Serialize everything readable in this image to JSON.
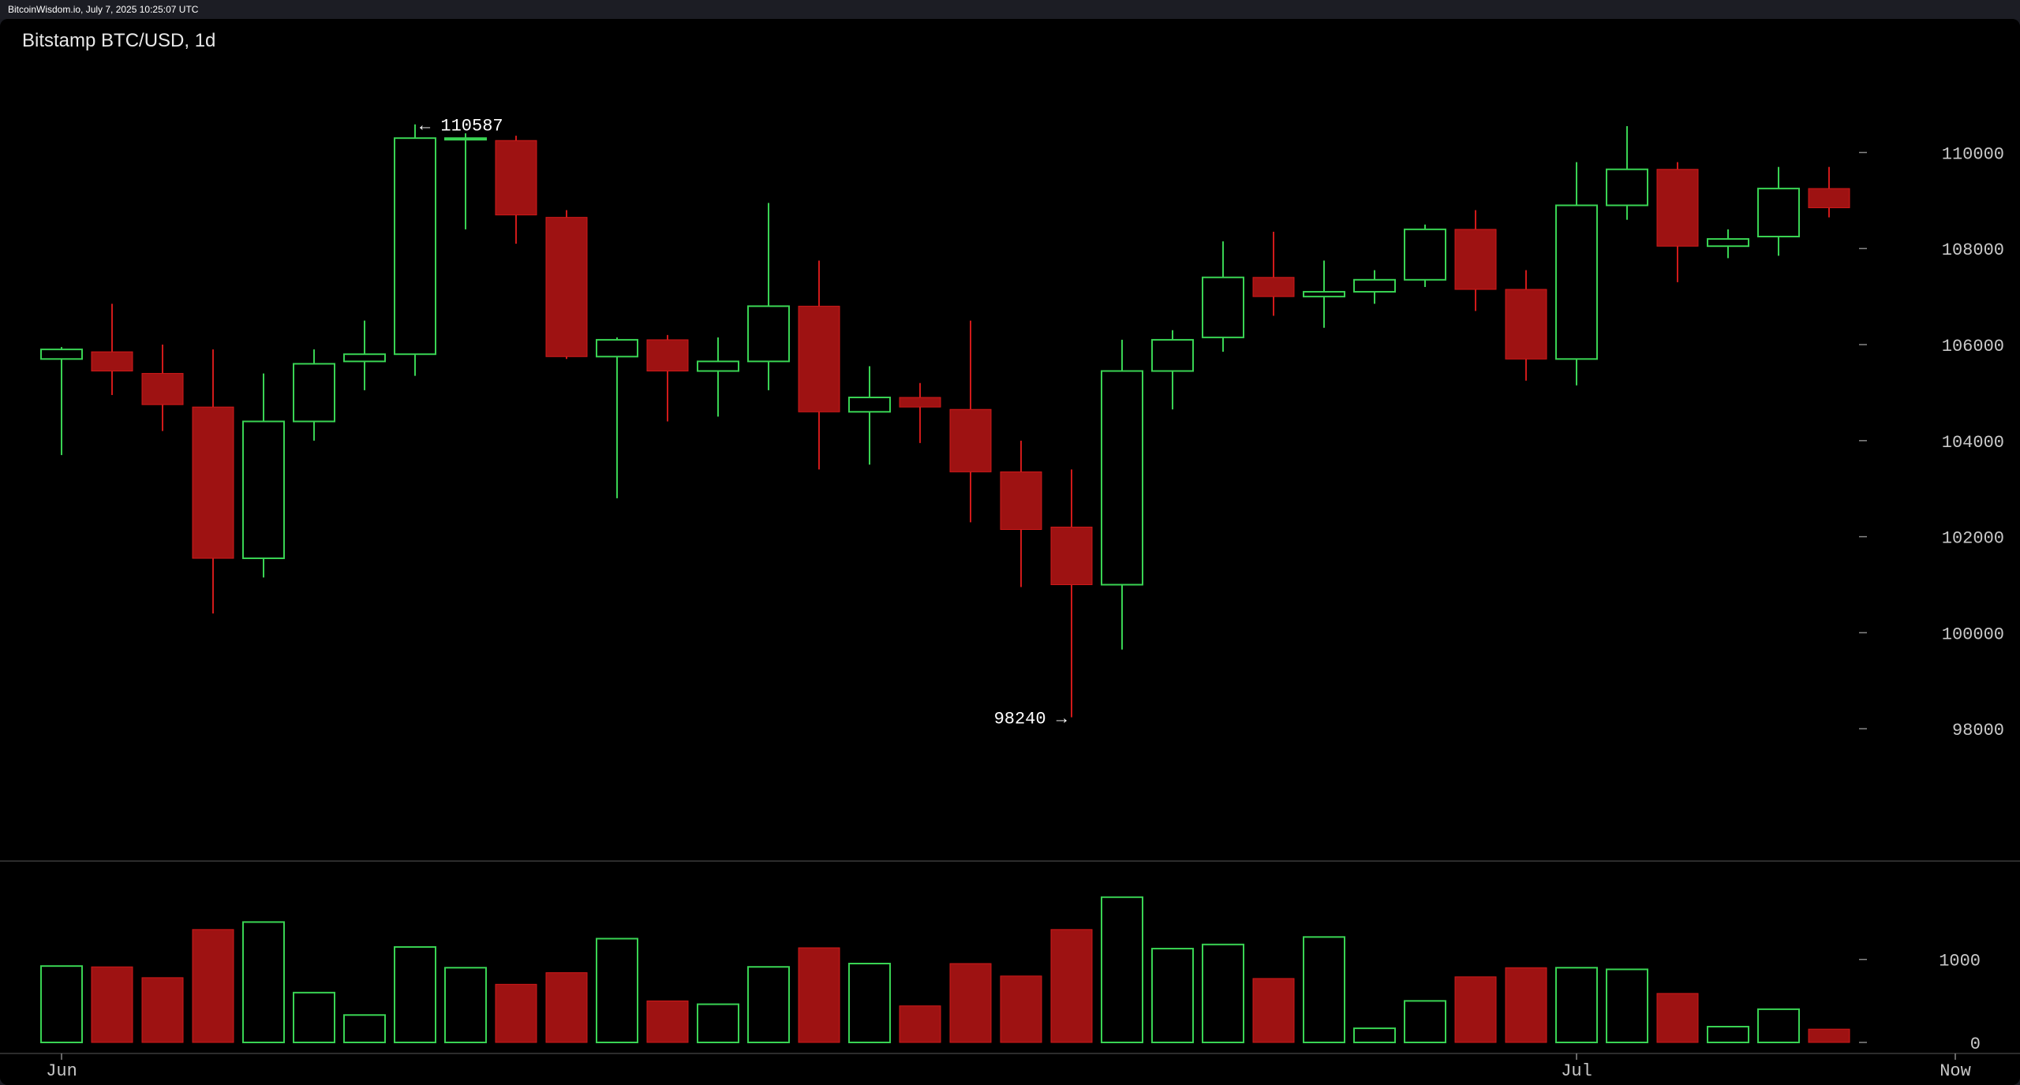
{
  "header": {
    "source_line": "BitcoinWisdom.io, July 7, 2025 10:25:07 UTC"
  },
  "colors": {
    "background": "#000000",
    "up": "#39d353",
    "down": "#9e1212",
    "down_wick": "#d11a1a",
    "grid_text": "#c8c8c8",
    "separator": "#3a3a3a"
  },
  "chart_data": {
    "type": "candlestick",
    "title": "Bitstamp BTC/USD, 1d",
    "price_axis": {
      "ticks": [
        98000,
        100000,
        102000,
        104000,
        106000,
        108000,
        110000
      ],
      "tick_labels": [
        "98000",
        "100000",
        "102000",
        "104000",
        "106000",
        "108000",
        "110000"
      ],
      "ylim": [
        96000,
        111600
      ]
    },
    "volume_axis": {
      "ticks": [
        0,
        1000
      ],
      "tick_labels": [
        "0",
        "1000"
      ],
      "ylim": [
        0,
        1900
      ]
    },
    "x_axis": {
      "labels": [
        {
          "label": "Jun",
          "index": 0
        },
        {
          "label": "Jul",
          "index": 30
        },
        {
          "label": "Now",
          "index": 37.5
        }
      ]
    },
    "annotations": {
      "high": {
        "value": 110587,
        "label": "← 110587",
        "index": 7
      },
      "low": {
        "value": 98240,
        "label": "98240 →",
        "index": 20
      }
    },
    "candles": [
      {
        "o": 105700,
        "h": 105950,
        "l": 103700,
        "c": 105900,
        "v": 920
      },
      {
        "o": 105850,
        "h": 106850,
        "l": 104950,
        "c": 105450,
        "v": 910
      },
      {
        "o": 105400,
        "h": 106000,
        "l": 104200,
        "c": 104750,
        "v": 780
      },
      {
        "o": 104700,
        "h": 105900,
        "l": 100400,
        "c": 101550,
        "v": 1360
      },
      {
        "o": 101550,
        "h": 105400,
        "l": 101150,
        "c": 104400,
        "v": 1450
      },
      {
        "o": 104400,
        "h": 105900,
        "l": 104000,
        "c": 105600,
        "v": 600
      },
      {
        "o": 105650,
        "h": 106500,
        "l": 105050,
        "c": 105800,
        "v": 330
      },
      {
        "o": 105800,
        "h": 110587,
        "l": 105350,
        "c": 110300,
        "v": 1150
      },
      {
        "o": 110300,
        "h": 110400,
        "l": 108400,
        "c": 110300,
        "v": 900
      },
      {
        "o": 110250,
        "h": 110350,
        "l": 108100,
        "c": 108700,
        "v": 700
      },
      {
        "o": 108650,
        "h": 108800,
        "l": 105700,
        "c": 105750,
        "v": 840
      },
      {
        "o": 105750,
        "h": 106150,
        "l": 102800,
        "c": 106100,
        "v": 1250
      },
      {
        "o": 106100,
        "h": 106200,
        "l": 104400,
        "c": 105450,
        "v": 500
      },
      {
        "o": 105450,
        "h": 106150,
        "l": 104500,
        "c": 105650,
        "v": 460
      },
      {
        "o": 105650,
        "h": 108950,
        "l": 105050,
        "c": 106800,
        "v": 910
      },
      {
        "o": 106800,
        "h": 107750,
        "l": 103400,
        "c": 104600,
        "v": 1140
      },
      {
        "o": 104600,
        "h": 105550,
        "l": 103500,
        "c": 104900,
        "v": 950
      },
      {
        "o": 104900,
        "h": 105200,
        "l": 103950,
        "c": 104700,
        "v": 440
      },
      {
        "o": 104650,
        "h": 106500,
        "l": 102300,
        "c": 103350,
        "v": 950
      },
      {
        "o": 103350,
        "h": 104000,
        "l": 100950,
        "c": 102150,
        "v": 800
      },
      {
        "o": 102200,
        "h": 103400,
        "l": 98240,
        "c": 101000,
        "v": 1360
      },
      {
        "o": 101000,
        "h": 106100,
        "l": 99650,
        "c": 105450,
        "v": 1750
      },
      {
        "o": 105450,
        "h": 106300,
        "l": 104650,
        "c": 106100,
        "v": 1130
      },
      {
        "o": 106150,
        "h": 108150,
        "l": 105850,
        "c": 107400,
        "v": 1180
      },
      {
        "o": 107400,
        "h": 108350,
        "l": 106600,
        "c": 107000,
        "v": 770
      },
      {
        "o": 107000,
        "h": 107750,
        "l": 106350,
        "c": 107100,
        "v": 1270
      },
      {
        "o": 107100,
        "h": 107550,
        "l": 106850,
        "c": 107350,
        "v": 170
      },
      {
        "o": 107350,
        "h": 108500,
        "l": 107200,
        "c": 108400,
        "v": 500
      },
      {
        "o": 108400,
        "h": 108800,
        "l": 106700,
        "c": 107150,
        "v": 790
      },
      {
        "o": 107150,
        "h": 107550,
        "l": 105250,
        "c": 105700,
        "v": 900
      },
      {
        "o": 105700,
        "h": 109800,
        "l": 105150,
        "c": 108900,
        "v": 900
      },
      {
        "o": 108900,
        "h": 110550,
        "l": 108600,
        "c": 109650,
        "v": 880
      },
      {
        "o": 109650,
        "h": 109800,
        "l": 107300,
        "c": 108050,
        "v": 590
      },
      {
        "o": 108050,
        "h": 108400,
        "l": 107800,
        "c": 108200,
        "v": 190
      },
      {
        "o": 108250,
        "h": 109700,
        "l": 107850,
        "c": 109250,
        "v": 400
      },
      {
        "o": 109250,
        "h": 109700,
        "l": 108650,
        "c": 108850,
        "v": 160
      }
    ]
  }
}
